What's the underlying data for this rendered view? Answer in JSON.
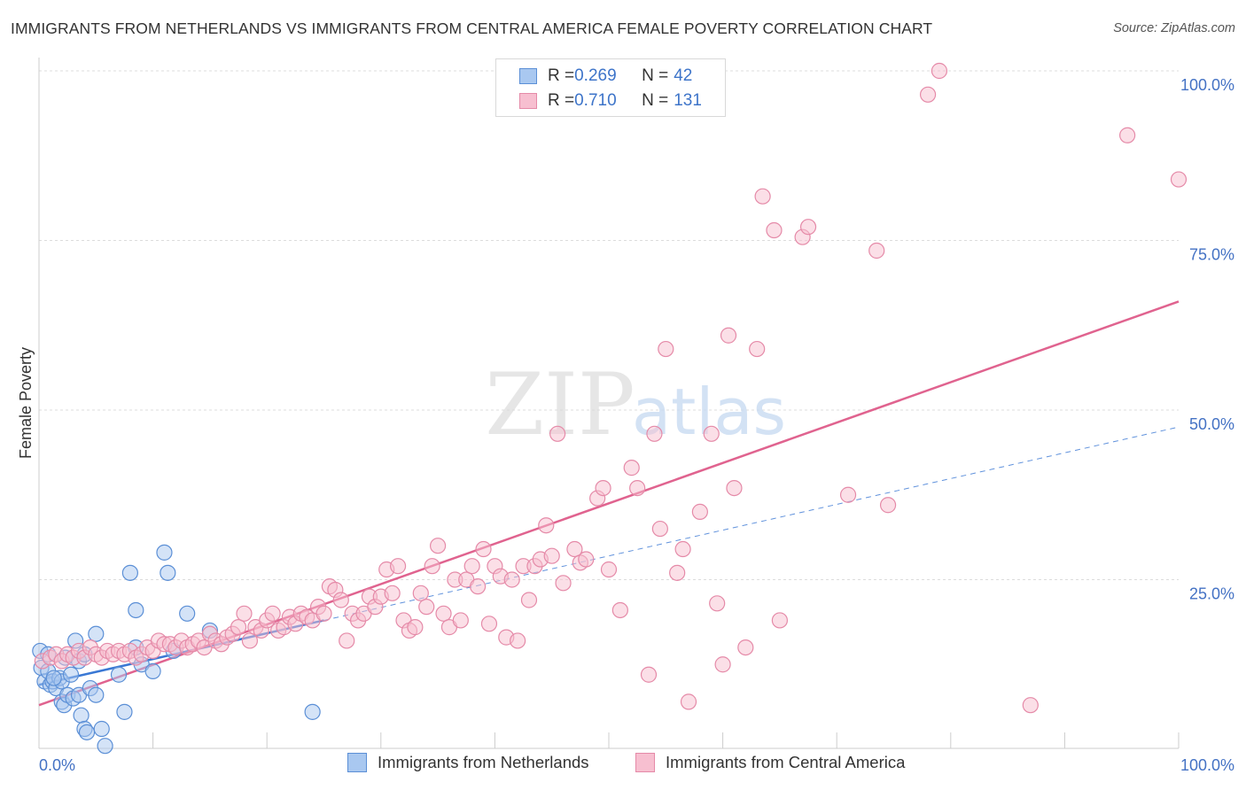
{
  "title": "IMMIGRANTS FROM NETHERLANDS VS IMMIGRANTS FROM CENTRAL AMERICA FEMALE POVERTY CORRELATION CHART",
  "source": "Source: ZipAtlas.com",
  "watermark": {
    "zip": "ZIP",
    "atlas": "atlas"
  },
  "legend_stats": [
    {
      "r_label": "R = ",
      "r_value": "0.269",
      "n_label": "N = ",
      "n_value": "42"
    },
    {
      "r_label": "R = ",
      "r_value": "0.710",
      "n_label": "N = ",
      "n_value": "131"
    }
  ],
  "chart_data": {
    "type": "scatter",
    "title": "IMMIGRANTS FROM NETHERLANDS VS IMMIGRANTS FROM CENTRAL AMERICA FEMALE POVERTY CORRELATION CHART",
    "xlabel": "",
    "ylabel": "Female Poverty",
    "xlim": [
      0,
      100
    ],
    "ylim": [
      0,
      102
    ],
    "x_tick_labels": [
      "0.0%",
      "100.0%"
    ],
    "y_ticks": [
      25,
      50,
      75,
      100
    ],
    "y_tick_labels": [
      "25.0%",
      "50.0%",
      "75.0%",
      "100.0%"
    ],
    "grid": true,
    "legend_position": "top-center",
    "colors": {
      "netherlands_fill": "#a9c8f0",
      "netherlands_stroke": "#5b8fd6",
      "netherlands_line": "#3a78d4",
      "central_america_fill": "#f7bfd0",
      "central_america_stroke": "#e58aa8",
      "central_america_line": "#e0638f",
      "axis_label": "#4472c4"
    },
    "series": [
      {
        "name": "Immigrants from Netherlands",
        "color": "#5b8fd6",
        "trend": {
          "x": [
            0,
            25
          ],
          "y": [
            9.5,
            19.0
          ],
          "dashed_extension_to": [
            100,
            47.5
          ]
        },
        "points": [
          [
            0.1,
            14.5
          ],
          [
            0.2,
            12.0
          ],
          [
            0.5,
            10.0
          ],
          [
            0.8,
            11.5
          ],
          [
            1.0,
            9.5
          ],
          [
            1.2,
            10.0
          ],
          [
            1.5,
            9.0
          ],
          [
            1.8,
            10.5
          ],
          [
            2.0,
            7.0
          ],
          [
            2.0,
            10.0
          ],
          [
            2.2,
            6.5
          ],
          [
            2.5,
            8.0
          ],
          [
            2.8,
            11.0
          ],
          [
            3.0,
            7.5
          ],
          [
            3.2,
            16.0
          ],
          [
            3.5,
            8.0
          ],
          [
            3.5,
            13.0
          ],
          [
            3.7,
            5.0
          ],
          [
            4.0,
            3.0
          ],
          [
            4.0,
            14.0
          ],
          [
            4.2,
            2.5
          ],
          [
            4.5,
            9.0
          ],
          [
            5.0,
            8.0
          ],
          [
            5.0,
            17.0
          ],
          [
            5.5,
            3.0
          ],
          [
            5.8,
            0.5
          ],
          [
            7.0,
            11.0
          ],
          [
            7.5,
            5.5
          ],
          [
            8.0,
            26.0
          ],
          [
            8.5,
            20.5
          ],
          [
            8.5,
            15.0
          ],
          [
            9.0,
            12.5
          ],
          [
            10.0,
            11.5
          ],
          [
            11.0,
            29.0
          ],
          [
            11.3,
            26.0
          ],
          [
            11.8,
            14.5
          ],
          [
            13.0,
            20.0
          ],
          [
            15.0,
            17.5
          ],
          [
            24.0,
            5.5
          ],
          [
            1.3,
            10.5
          ],
          [
            2.3,
            13.5
          ],
          [
            0.8,
            14.0
          ]
        ]
      },
      {
        "name": "Immigrants from Central America",
        "color": "#e58aa8",
        "trend": {
          "x": [
            0,
            100
          ],
          "y": [
            6.5,
            66.0
          ]
        },
        "points": [
          [
            0.3,
            13.0
          ],
          [
            1.0,
            13.5
          ],
          [
            1.5,
            14.0
          ],
          [
            2.0,
            13.0
          ],
          [
            2.5,
            14.0
          ],
          [
            3.0,
            13.5
          ],
          [
            3.5,
            14.5
          ],
          [
            4.0,
            13.5
          ],
          [
            4.5,
            15.0
          ],
          [
            5.0,
            14.0
          ],
          [
            5.5,
            13.5
          ],
          [
            6.0,
            14.5
          ],
          [
            6.5,
            14.0
          ],
          [
            7.0,
            14.5
          ],
          [
            7.5,
            14.0
          ],
          [
            8.0,
            14.5
          ],
          [
            8.5,
            13.5
          ],
          [
            9.0,
            14.0
          ],
          [
            9.5,
            15.0
          ],
          [
            10.0,
            14.5
          ],
          [
            10.5,
            16.0
          ],
          [
            11.0,
            15.5
          ],
          [
            11.5,
            15.5
          ],
          [
            12.0,
            15.0
          ],
          [
            12.5,
            16.0
          ],
          [
            13.0,
            15.0
          ],
          [
            13.5,
            15.5
          ],
          [
            14.0,
            16.0
          ],
          [
            14.5,
            15.0
          ],
          [
            15.0,
            17.0
          ],
          [
            15.5,
            16.0
          ],
          [
            16.0,
            15.5
          ],
          [
            16.5,
            16.5
          ],
          [
            17.0,
            17.0
          ],
          [
            17.5,
            18.0
          ],
          [
            18.0,
            20.0
          ],
          [
            18.5,
            16.0
          ],
          [
            19.0,
            18.0
          ],
          [
            19.5,
            17.5
          ],
          [
            20.0,
            19.0
          ],
          [
            20.5,
            20.0
          ],
          [
            21.0,
            17.5
          ],
          [
            21.5,
            18.0
          ],
          [
            22.0,
            19.5
          ],
          [
            22.5,
            18.5
          ],
          [
            23.0,
            20.0
          ],
          [
            23.5,
            19.5
          ],
          [
            24.0,
            19.0
          ],
          [
            24.5,
            21.0
          ],
          [
            25.0,
            20.0
          ],
          [
            25.5,
            24.0
          ],
          [
            26.0,
            23.5
          ],
          [
            26.5,
            22.0
          ],
          [
            27.0,
            16.0
          ],
          [
            27.5,
            20.0
          ],
          [
            28.0,
            19.0
          ],
          [
            28.5,
            20.0
          ],
          [
            29.0,
            22.5
          ],
          [
            29.5,
            21.0
          ],
          [
            30.0,
            22.5
          ],
          [
            30.5,
            26.5
          ],
          [
            31.0,
            23.0
          ],
          [
            31.5,
            27.0
          ],
          [
            32.0,
            19.0
          ],
          [
            32.5,
            17.5
          ],
          [
            33.0,
            18.0
          ],
          [
            33.5,
            23.0
          ],
          [
            34.0,
            21.0
          ],
          [
            34.5,
            27.0
          ],
          [
            35.0,
            30.0
          ],
          [
            35.5,
            20.0
          ],
          [
            36.0,
            18.0
          ],
          [
            36.5,
            25.0
          ],
          [
            37.0,
            19.0
          ],
          [
            37.5,
            25.0
          ],
          [
            38.0,
            27.0
          ],
          [
            38.5,
            24.0
          ],
          [
            39.0,
            29.5
          ],
          [
            39.5,
            18.5
          ],
          [
            40.0,
            27.0
          ],
          [
            40.5,
            25.5
          ],
          [
            41.0,
            16.5
          ],
          [
            41.5,
            25.0
          ],
          [
            42.0,
            16.0
          ],
          [
            42.5,
            27.0
          ],
          [
            43.0,
            22.0
          ],
          [
            43.5,
            27.0
          ],
          [
            44.0,
            28.0
          ],
          [
            44.5,
            33.0
          ],
          [
            45.0,
            28.5
          ],
          [
            45.5,
            46.5
          ],
          [
            46.0,
            24.5
          ],
          [
            47.0,
            29.5
          ],
          [
            47.5,
            27.5
          ],
          [
            48.0,
            28.0
          ],
          [
            49.0,
            37.0
          ],
          [
            49.5,
            38.5
          ],
          [
            50.0,
            26.5
          ],
          [
            51.0,
            20.5
          ],
          [
            52.0,
            41.5
          ],
          [
            52.5,
            38.5
          ],
          [
            53.5,
            11.0
          ],
          [
            54.0,
            46.5
          ],
          [
            54.5,
            32.5
          ],
          [
            55.0,
            59.0
          ],
          [
            56.0,
            26.0
          ],
          [
            56.5,
            29.5
          ],
          [
            57.0,
            7.0
          ],
          [
            58.0,
            35.0
          ],
          [
            59.0,
            46.5
          ],
          [
            59.5,
            21.5
          ],
          [
            60.0,
            12.5
          ],
          [
            60.5,
            61.0
          ],
          [
            61.0,
            38.5
          ],
          [
            62.0,
            15.0
          ],
          [
            63.0,
            59.0
          ],
          [
            63.5,
            81.5
          ],
          [
            64.5,
            76.5
          ],
          [
            65.0,
            19.0
          ],
          [
            67.0,
            75.5
          ],
          [
            67.5,
            77.0
          ],
          [
            71.0,
            37.5
          ],
          [
            73.5,
            73.5
          ],
          [
            74.5,
            36.0
          ],
          [
            78.0,
            96.5
          ],
          [
            79.0,
            100.0
          ],
          [
            87.0,
            6.5
          ],
          [
            95.5,
            90.5
          ],
          [
            100.0,
            84.0
          ]
        ]
      }
    ]
  },
  "bottom_legend": [
    {
      "label": "Immigrants from Netherlands"
    },
    {
      "label": "Immigrants from Central America"
    }
  ]
}
